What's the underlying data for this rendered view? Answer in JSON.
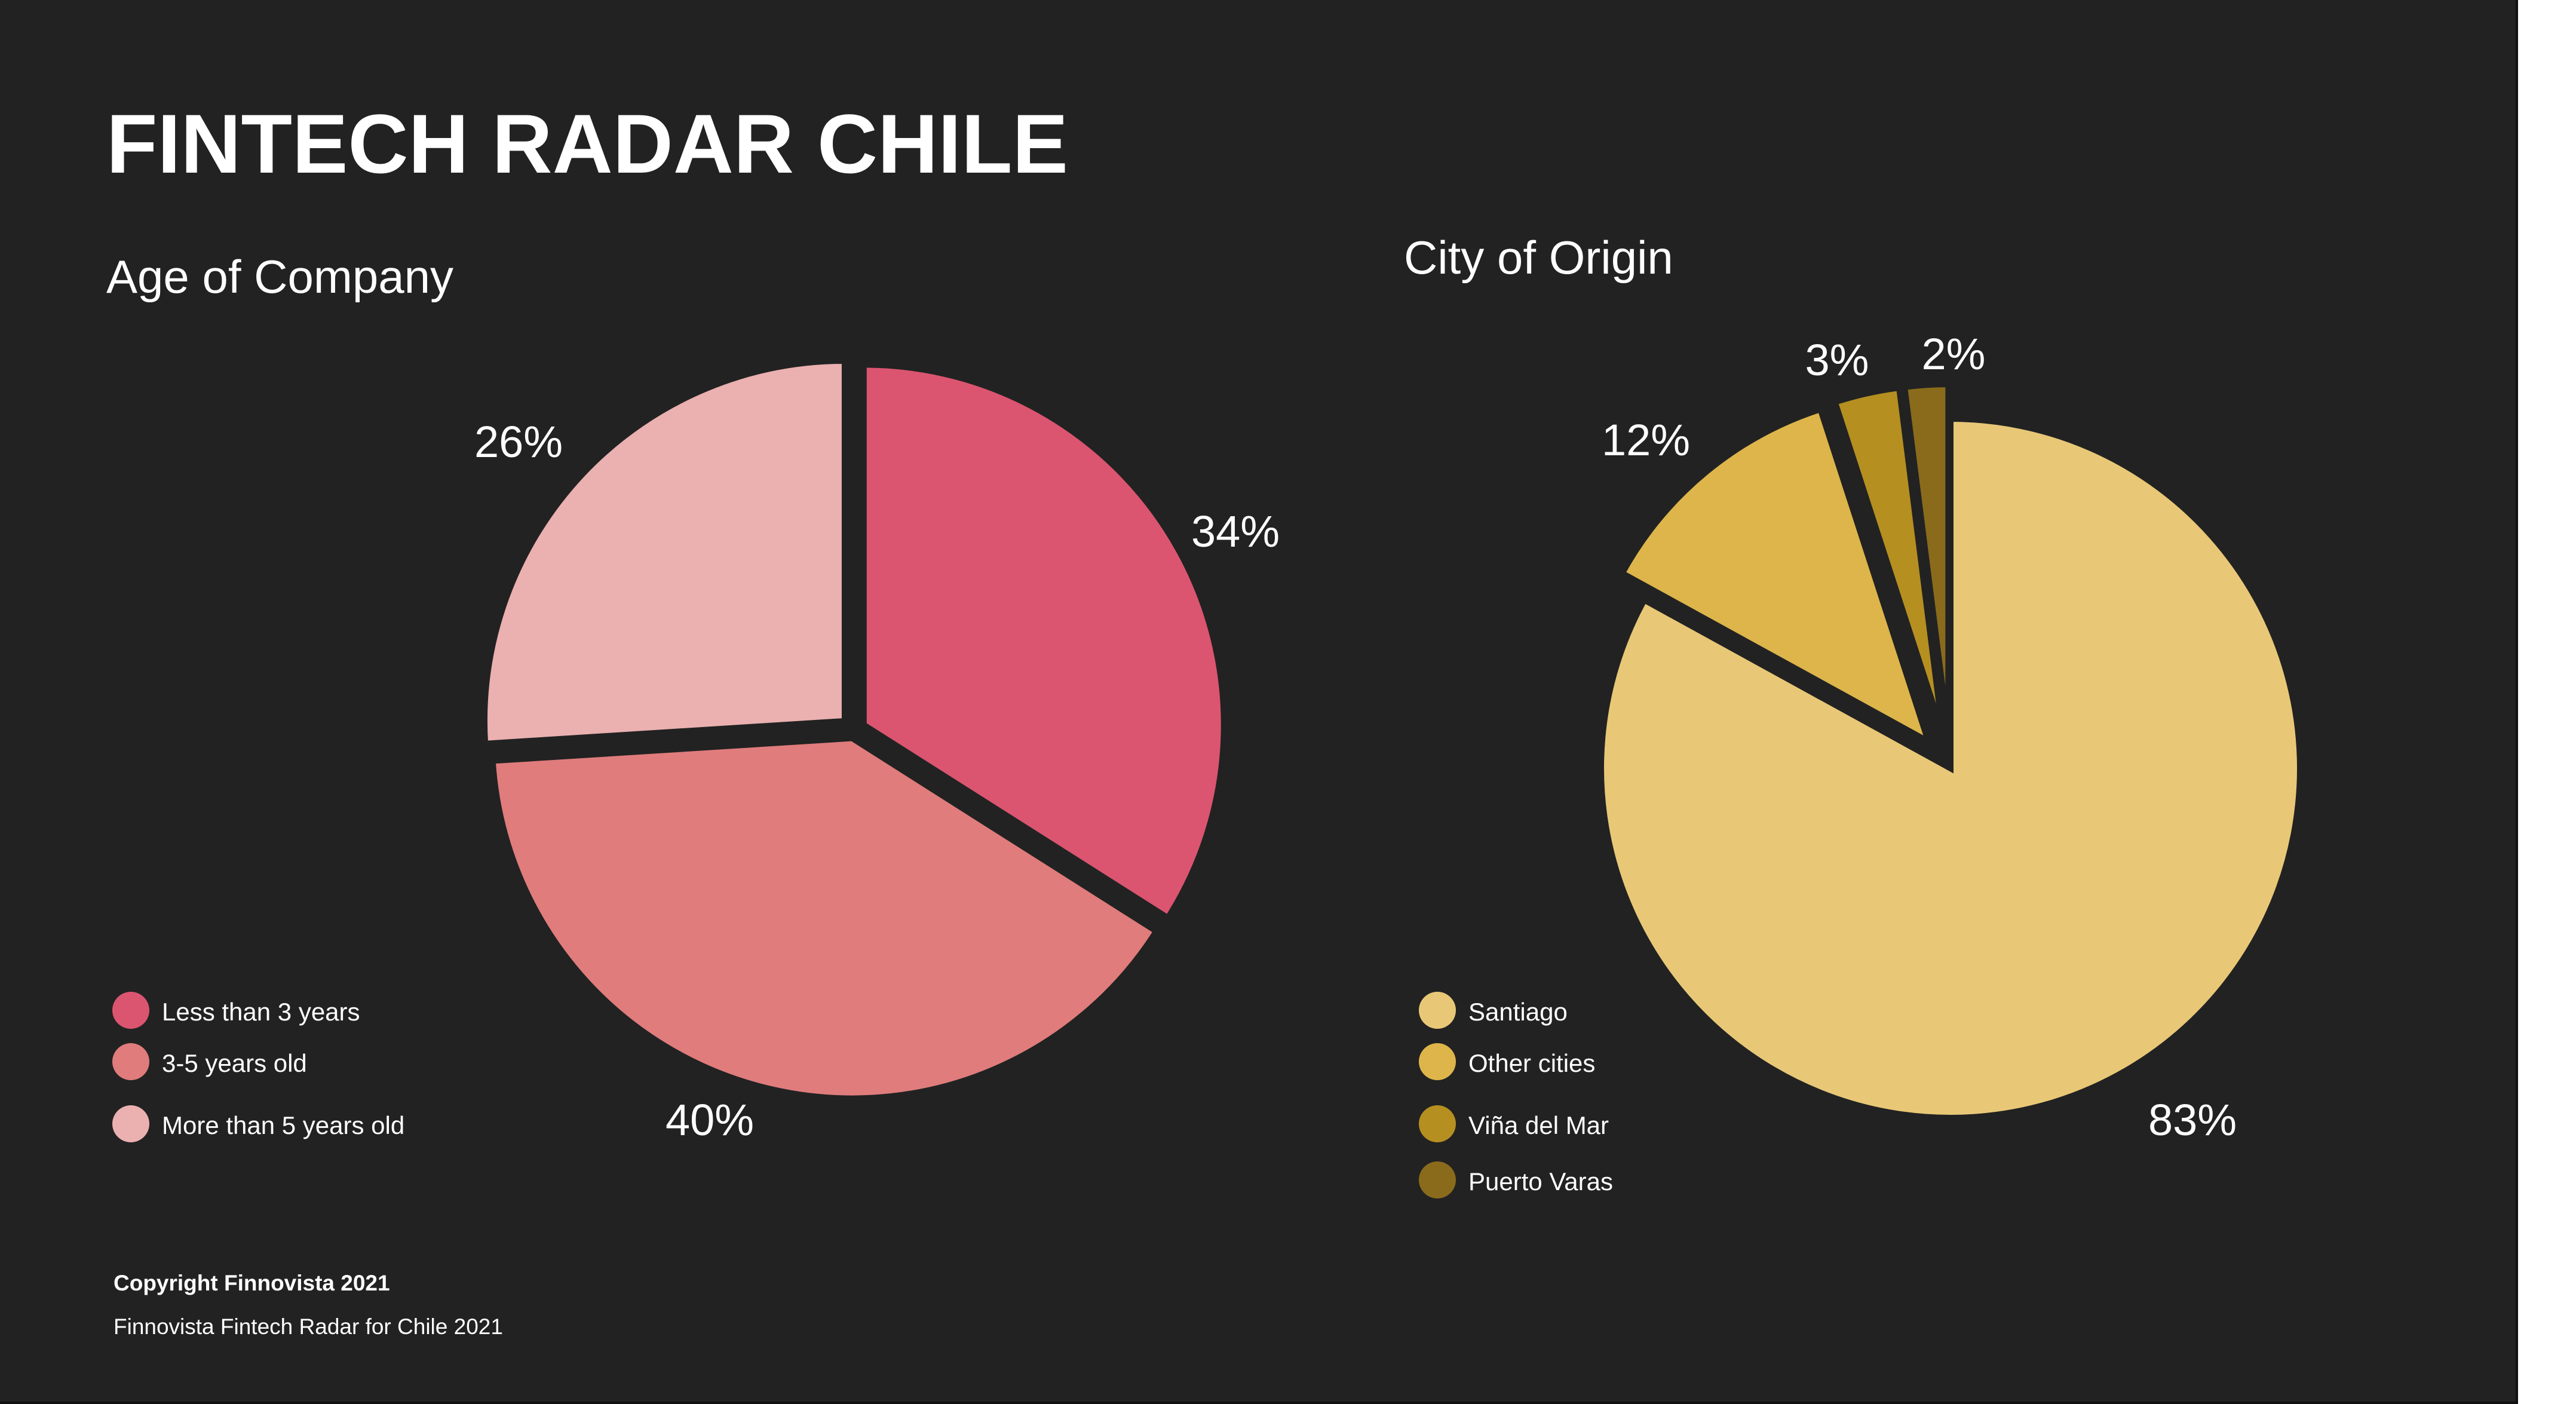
{
  "title": "FINTECH RADAR CHILE",
  "footer": {
    "copyright": "Copyright Finnovista 2021",
    "source": "Finnovista Fintech Radar for Chile 2021"
  },
  "chart_data": [
    {
      "type": "pie",
      "title": "Age of Company",
      "categories": [
        "Less than 3 years",
        "3-5 years old",
        "More than 5 years old"
      ],
      "values": [
        34,
        40,
        26
      ],
      "value_labels": [
        "34%",
        "40%",
        "26%"
      ],
      "colors": [
        "#DB5570",
        "#E07C7C",
        "#EBB0B0"
      ],
      "legend_position": "bottom-left"
    },
    {
      "type": "pie",
      "title": "City of Origin",
      "categories": [
        "Santiago",
        "Other cities",
        "Viña del Mar",
        "Puerto Varas"
      ],
      "values": [
        83,
        12,
        3,
        2
      ],
      "value_labels": [
        "83%",
        "12%",
        "3%",
        "2%"
      ],
      "colors": [
        "#E8C877",
        "#DDB54A",
        "#B58F20",
        "#8A6B1C"
      ],
      "legend_position": "bottom-left"
    }
  ]
}
